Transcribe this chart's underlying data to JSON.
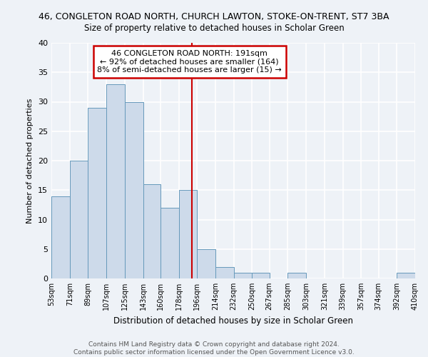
{
  "title": "46, CONGLETON ROAD NORTH, CHURCH LAWTON, STOKE-ON-TRENT, ST7 3BA",
  "subtitle": "Size of property relative to detached houses in Scholar Green",
  "xlabel": "Distribution of detached houses by size in Scholar Green",
  "ylabel": "Number of detached properties",
  "bar_color": "#cddaea",
  "bar_edge_color": "#6699bb",
  "bin_labels": [
    "53sqm",
    "71sqm",
    "89sqm",
    "107sqm",
    "125sqm",
    "143sqm",
    "160sqm",
    "178sqm",
    "196sqm",
    "214sqm",
    "232sqm",
    "250sqm",
    "267sqm",
    "285sqm",
    "303sqm",
    "321sqm",
    "339sqm",
    "357sqm",
    "374sqm",
    "392sqm",
    "410sqm"
  ],
  "bin_edges": [
    53,
    71,
    89,
    107,
    125,
    143,
    160,
    178,
    196,
    214,
    232,
    250,
    267,
    285,
    303,
    321,
    339,
    357,
    374,
    392,
    410
  ],
  "counts": [
    14,
    20,
    29,
    33,
    30,
    16,
    12,
    15,
    5,
    2,
    1,
    1,
    0,
    1,
    0,
    0,
    0,
    0,
    0,
    1
  ],
  "property_size": 191,
  "annotation_title": "46 CONGLETON ROAD NORTH: 191sqm",
  "annotation_line1": "← 92% of detached houses are smaller (164)",
  "annotation_line2": "8% of semi-detached houses are larger (15) →",
  "vline_color": "#cc0000",
  "annotation_box_color": "#ffffff",
  "annotation_box_edge": "#cc0000",
  "ylim": [
    0,
    40
  ],
  "yticks": [
    0,
    5,
    10,
    15,
    20,
    25,
    30,
    35,
    40
  ],
  "footer": "Contains HM Land Registry data © Crown copyright and database right 2024.\nContains public sector information licensed under the Open Government Licence v3.0.",
  "background_color": "#eef2f7",
  "grid_color": "#ffffff"
}
